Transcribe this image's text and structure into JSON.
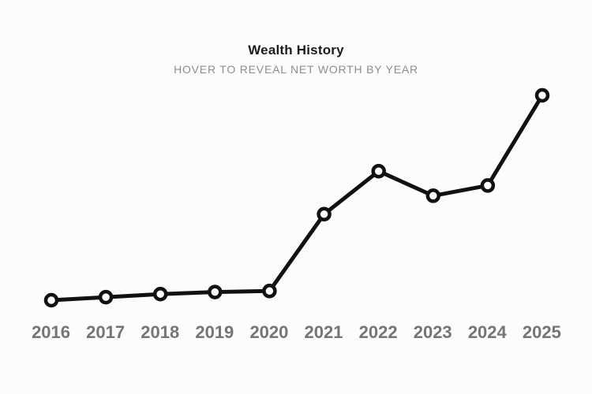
{
  "page": {
    "background": "#fcfcfc"
  },
  "header": {
    "title": "Wealth History",
    "subtitle": "HOVER TO REVEAL NET WORTH BY YEAR"
  },
  "colors": {
    "line": "#111111",
    "marker_fill": "#ffffff",
    "marker_stroke": "#111111",
    "axis_label": "#757575",
    "title": "#1c1c1e",
    "subtitle": "#8a8e93",
    "background": "#fcfcfc"
  },
  "chart_data": {
    "type": "line",
    "title": "Wealth History",
    "subtitle": "HOVER TO REVEAL NET WORTH BY YEAR",
    "categories": [
      "2016",
      "2017",
      "2018",
      "2019",
      "2020",
      "2021",
      "2022",
      "2023",
      "2024",
      "2025"
    ],
    "series": [
      {
        "name": "Net worth by year",
        "values": [
          0,
          1.5,
          3,
          4,
          4.5,
          42,
          63,
          51,
          56,
          100
        ],
        "values_unit": "relative scale 0-100 (actual net worth values hidden until hover)"
      }
    ],
    "ylim": [
      0,
      105
    ],
    "grid": false,
    "legend": "none",
    "marker": "open-circle",
    "x_axis_position": "bottom"
  }
}
